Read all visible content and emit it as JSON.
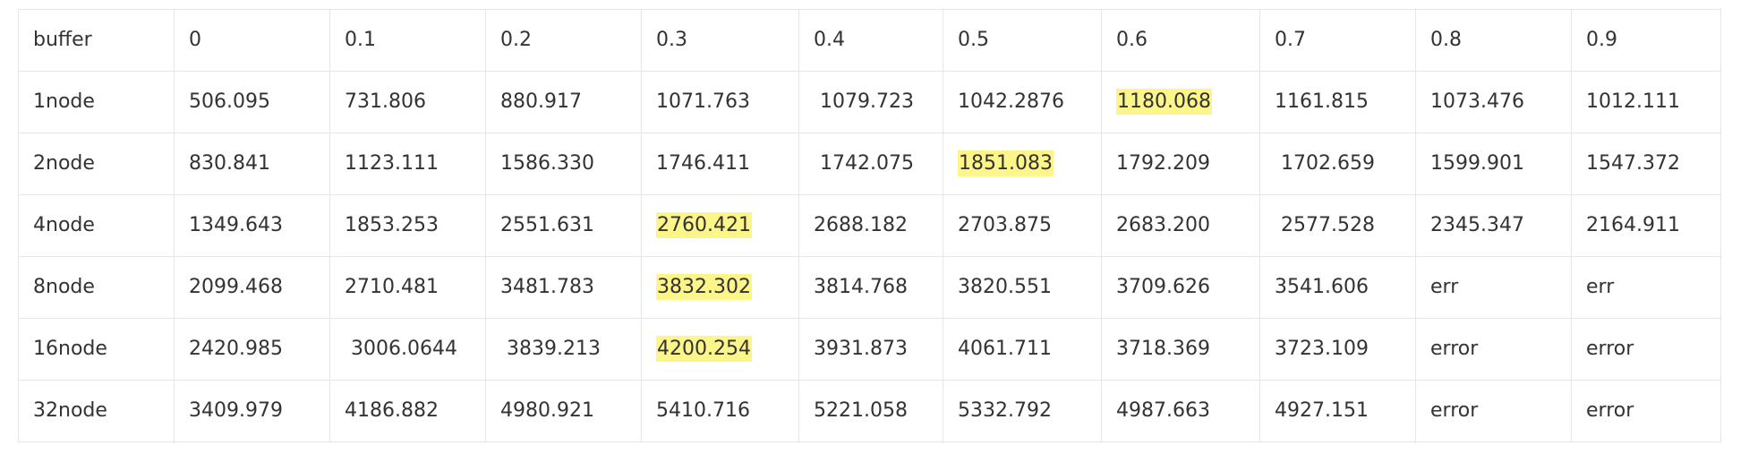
{
  "table": {
    "header": [
      "buffer",
      "0",
      "0.1",
      "0.2",
      "0.3",
      "0.4",
      "0.5",
      "0.6",
      "0.7",
      "0.8",
      "0.9"
    ],
    "rows": [
      [
        "1node",
        "506.095",
        "731.806",
        "880.917",
        "1071.763",
        " 1079.723",
        "1042.2876",
        "1180.068",
        "1161.815",
        "1073.476",
        "1012.111"
      ],
      [
        "2node",
        "830.841",
        "1123.111",
        "1586.330",
        "1746.411",
        " 1742.075",
        " 1851.083",
        "1792.209",
        " 1702.659",
        "1599.901",
        "1547.372"
      ],
      [
        "4node",
        "1349.643",
        "1853.253",
        "2551.631",
        "2760.421",
        "2688.182",
        "2703.875",
        "2683.200",
        " 2577.528",
        "2345.347",
        "2164.911"
      ],
      [
        "8node",
        "2099.468",
        "2710.481",
        "3481.783",
        "3832.302",
        "3814.768",
        "3820.551",
        "3709.626",
        "3541.606",
        "err",
        "err"
      ],
      [
        "16node",
        "2420.985",
        " 3006.0644",
        " 3839.213",
        "4200.254",
        "3931.873",
        "4061.711",
        "3718.369",
        "3723.109",
        "error",
        "error"
      ],
      [
        "32node",
        "3409.979",
        "4186.882",
        "4980.921",
        "5410.716",
        "5221.058",
        "5332.792",
        "4987.663",
        "4927.151",
        "error",
        "error"
      ]
    ],
    "highlighted": [
      {
        "row": 0,
        "col": 7
      },
      {
        "row": 1,
        "col": 6
      },
      {
        "row": 2,
        "col": 4
      },
      {
        "row": 3,
        "col": 4
      },
      {
        "row": 4,
        "col": 4
      }
    ]
  },
  "colors": {
    "highlight": "#fcf58a",
    "border": "#e6e6e6",
    "text": "#333333"
  }
}
